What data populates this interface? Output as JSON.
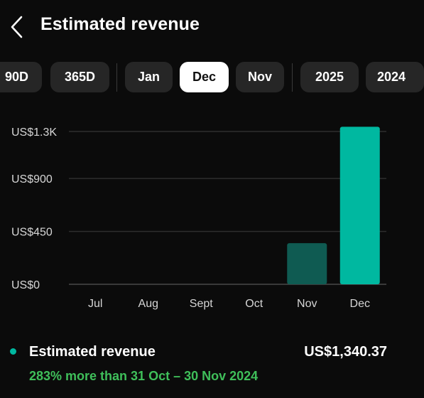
{
  "header": {
    "title": "Estimated revenue",
    "back_icon": "chevron-left-icon"
  },
  "filters": {
    "chips": [
      {
        "label": "90D",
        "selected": false
      },
      {
        "label": "365D",
        "selected": false
      },
      {
        "label": "Jan",
        "selected": false
      },
      {
        "label": "Dec",
        "selected": true
      },
      {
        "label": "Nov",
        "selected": false
      },
      {
        "label": "2025",
        "selected": false
      },
      {
        "label": "2024",
        "selected": false
      }
    ]
  },
  "chart_data": {
    "type": "bar",
    "categories": [
      "Jul",
      "Aug",
      "Sept",
      "Oct",
      "Nov",
      "Dec"
    ],
    "values": [
      0,
      0,
      0,
      0,
      349.6,
      1340.37
    ],
    "ylim": [
      0,
      1300
    ],
    "yticks": [
      {
        "value": 0,
        "label": "US$0"
      },
      {
        "value": 450,
        "label": "US$450"
      },
      {
        "value": 900,
        "label": "US$900"
      },
      {
        "value": 1300,
        "label": "US$1.3K"
      }
    ],
    "grid": true,
    "bar_colors": {
      "highlight": "#00b8a0",
      "muted": "#0f5b52"
    },
    "highlight_category": "Dec"
  },
  "summary": {
    "label": "Estimated revenue",
    "value": "US$1,340.37",
    "change": "283% more than 31 Oct – 30 Nov 2024",
    "dot_color": "#00b8a0",
    "change_color": "#3fbf5a"
  }
}
